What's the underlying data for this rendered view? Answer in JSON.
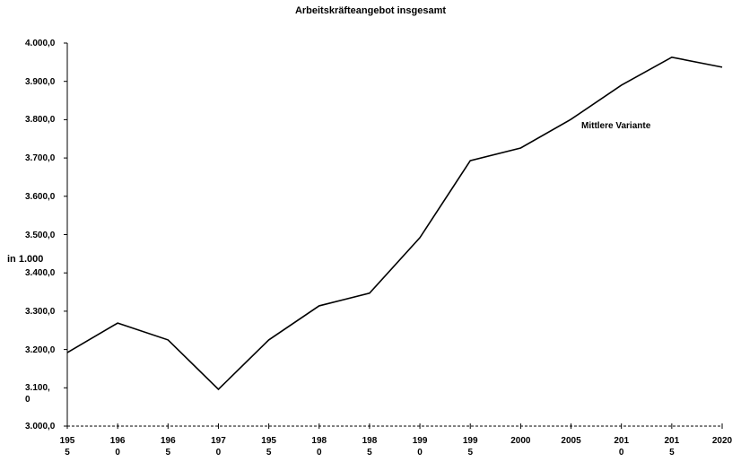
{
  "chart_data": {
    "type": "line",
    "title": "Arbeitskräfteangebot insgesamt",
    "y_axis_label": "in 1.000",
    "annotation": "Mittlere Variante",
    "categories": [
      "195\n5",
      "196\n0",
      "196\n5",
      "197\n0",
      "195\n5",
      "198\n0",
      "198\n5",
      "199\n0",
      "199\n5",
      "2000",
      "2005",
      "201\n0",
      "201\n5",
      "2020"
    ],
    "series": [
      {
        "name": "Mittlere Variante",
        "color": "#000000",
        "values": [
          3192,
          3269,
          3225,
          3096,
          3225,
          3314,
          3347,
          3492,
          3693,
          3726,
          3801,
          3890,
          3963,
          3937
        ]
      }
    ],
    "ylim": [
      3000,
      4000
    ],
    "yticks": [
      {
        "value": 3000,
        "label": "3.000,0"
      },
      {
        "value": 3100,
        "label": "3.100,\n0"
      },
      {
        "value": 3200,
        "label": "3.200,0"
      },
      {
        "value": 3300,
        "label": "3.300,0"
      },
      {
        "value": 3400,
        "label": "3.400,0"
      },
      {
        "value": 3500,
        "label": "3.500,0"
      },
      {
        "value": 3600,
        "label": "3.600,0"
      },
      {
        "value": 3700,
        "label": "3.700,0"
      },
      {
        "value": 3800,
        "label": "3.800,0"
      },
      {
        "value": 3900,
        "label": "3.900,0"
      },
      {
        "value": 4000,
        "label": "4.000,0"
      }
    ],
    "grid": false
  }
}
